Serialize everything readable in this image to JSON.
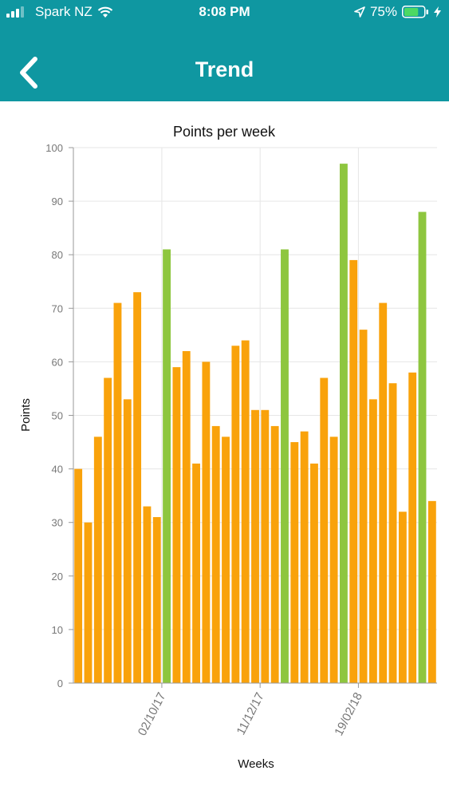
{
  "status_bar": {
    "carrier": "Spark NZ",
    "time": "8:08 PM",
    "battery_percent": "75%",
    "battery_level": 0.75
  },
  "header": {
    "title": "Trend",
    "back_icon": "chevron-left-icon"
  },
  "colors": {
    "header_bg": "#0f97a1",
    "bar_default": "#f9a20b",
    "bar_highlight": "#8ec63f",
    "battery_fill": "#4cd964"
  },
  "chart_data": {
    "type": "bar",
    "title": "Points per week",
    "xlabel": "Weeks",
    "ylabel": "Points",
    "ylim": [
      0,
      100
    ],
    "yticks": [
      0,
      10,
      20,
      30,
      40,
      50,
      60,
      70,
      80,
      90,
      100
    ],
    "grid": true,
    "values": [
      40,
      30,
      46,
      57,
      71,
      53,
      73,
      33,
      31,
      81,
      59,
      62,
      41,
      60,
      48,
      46,
      63,
      64,
      51,
      51,
      48,
      81,
      45,
      47,
      41,
      57,
      46,
      97,
      79,
      66,
      53,
      71,
      56,
      32,
      58,
      88,
      34
    ],
    "highlight": [
      false,
      false,
      false,
      false,
      false,
      false,
      false,
      false,
      false,
      true,
      false,
      false,
      false,
      false,
      false,
      false,
      false,
      false,
      false,
      false,
      false,
      true,
      false,
      false,
      false,
      false,
      false,
      true,
      false,
      false,
      false,
      false,
      false,
      false,
      false,
      true,
      false
    ],
    "x_tick_labels": [
      {
        "label": "02/10/17",
        "after_bar": 9
      },
      {
        "label": "11/12/17",
        "after_bar": 19
      },
      {
        "label": "19/02/18",
        "after_bar": 29
      }
    ]
  }
}
